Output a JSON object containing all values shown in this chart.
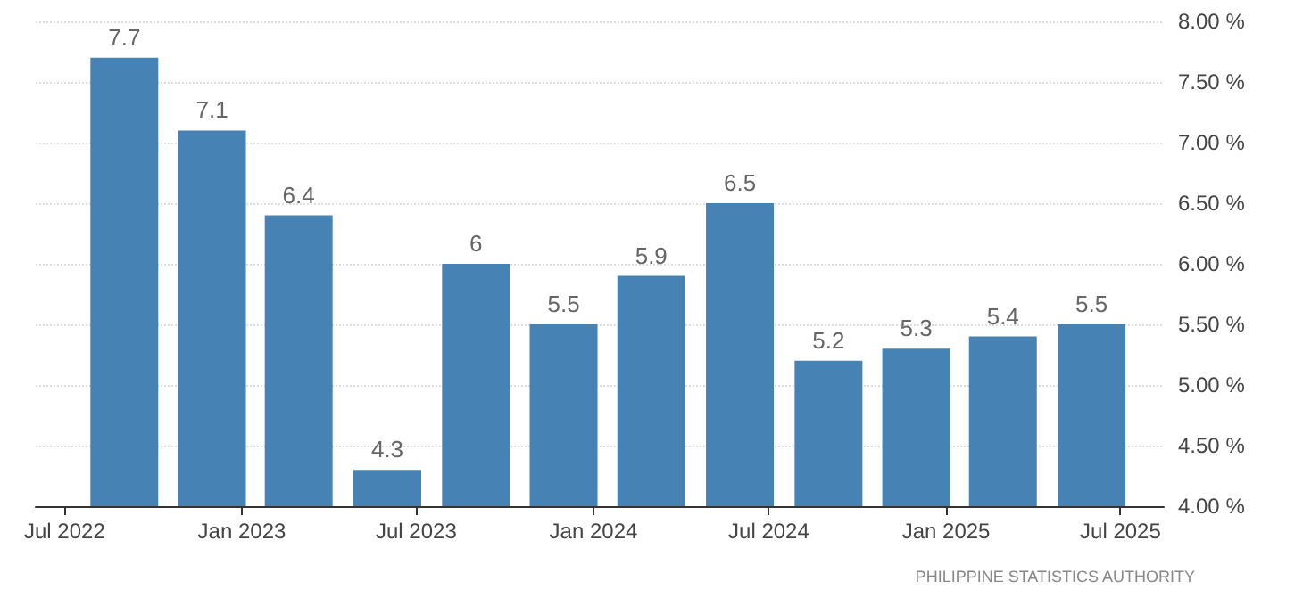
{
  "chart_data": {
    "type": "bar",
    "x": [
      "2022-09",
      "2022-12",
      "2023-03",
      "2023-06",
      "2023-09",
      "2023-12",
      "2024-03",
      "2024-06",
      "2024-09",
      "2024-12",
      "2025-03",
      "2025-06"
    ],
    "values": [
      7.7,
      7.1,
      6.4,
      4.3,
      6,
      5.5,
      5.9,
      6.5,
      5.2,
      5.3,
      5.4,
      5.5
    ],
    "color": "#4682b4",
    "data_labels": true,
    "xlim": [
      "2022-06-01",
      "2025-08-15"
    ],
    "xticks": [
      {
        "value": "2022-07",
        "label": "Jul 2022"
      },
      {
        "value": "2023-01",
        "label": "Jan 2023"
      },
      {
        "value": "2023-07",
        "label": "Jul 2023"
      },
      {
        "value": "2024-01",
        "label": "Jan 2024"
      },
      {
        "value": "2024-07",
        "label": "Jul 2024"
      },
      {
        "value": "2025-01",
        "label": "Jan 2025"
      },
      {
        "value": "2025-07",
        "label": "Jul 2025"
      }
    ],
    "ylim": [
      4,
      8
    ],
    "yticks": [
      {
        "value": 4,
        "label": "4.00 %"
      },
      {
        "value": 4.5,
        "label": "4.50 %"
      },
      {
        "value": 5,
        "label": "5.00 %"
      },
      {
        "value": 5.5,
        "label": "5.50 %"
      },
      {
        "value": 6,
        "label": "6.00 %"
      },
      {
        "value": 6.5,
        "label": "6.50 %"
      },
      {
        "value": 7,
        "label": "7.00 %"
      },
      {
        "value": 7.5,
        "label": "7.50 %"
      },
      {
        "value": 8,
        "label": "8.00 %"
      }
    ],
    "grid": "y",
    "annotations": [
      "PHILIPPINE STATISTICS AUTHORITY"
    ]
  }
}
